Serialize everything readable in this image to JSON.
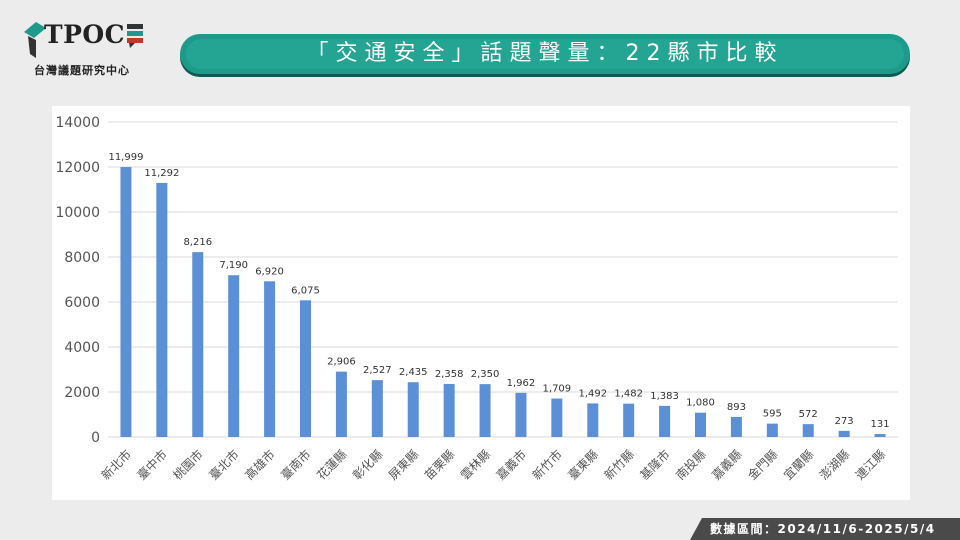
{
  "logo": {
    "wordmark": "TPOC",
    "subtitle": "台灣議題研究中心"
  },
  "header": {
    "title": "「交通安全」話題聲量：22縣市比較"
  },
  "footer": {
    "data_range": "數據區間：2024/11/6-2025/5/4"
  },
  "colors": {
    "bar": "#5b8fd6",
    "accent": "#1e9a8b",
    "footer_bg": "#4a4a4a"
  },
  "chart_data": {
    "type": "bar",
    "title": "",
    "xlabel": "",
    "ylabel": "",
    "ylim": [
      0,
      14000
    ],
    "yticks": [
      0,
      2000,
      4000,
      6000,
      8000,
      10000,
      12000,
      14000
    ],
    "grid": true,
    "categories": [
      "新北市",
      "臺中市",
      "桃園市",
      "臺北市",
      "高雄市",
      "臺南市",
      "花蓮縣",
      "彰化縣",
      "屏東縣",
      "苗栗縣",
      "雲林縣",
      "嘉義市",
      "新竹市",
      "臺東縣",
      "新竹縣",
      "基隆市",
      "南投縣",
      "嘉義縣",
      "金門縣",
      "宜蘭縣",
      "澎湖縣",
      "連江縣"
    ],
    "values": [
      11999,
      11292,
      8216,
      7190,
      6920,
      6075,
      2906,
      2527,
      2435,
      2358,
      2350,
      1962,
      1709,
      1492,
      1482,
      1383,
      1080,
      893,
      595,
      572,
      273,
      131
    ],
    "data_labels": [
      "11,999",
      "11,292",
      "8,216",
      "7,190",
      "6,920",
      "6,075",
      "2,906",
      "2,527",
      "2,435",
      "2,358",
      "2,350",
      "1,962",
      "1,709",
      "1,492",
      "1,482",
      "1,383",
      "1,080",
      "893",
      "595",
      "572",
      "273",
      "131"
    ]
  }
}
